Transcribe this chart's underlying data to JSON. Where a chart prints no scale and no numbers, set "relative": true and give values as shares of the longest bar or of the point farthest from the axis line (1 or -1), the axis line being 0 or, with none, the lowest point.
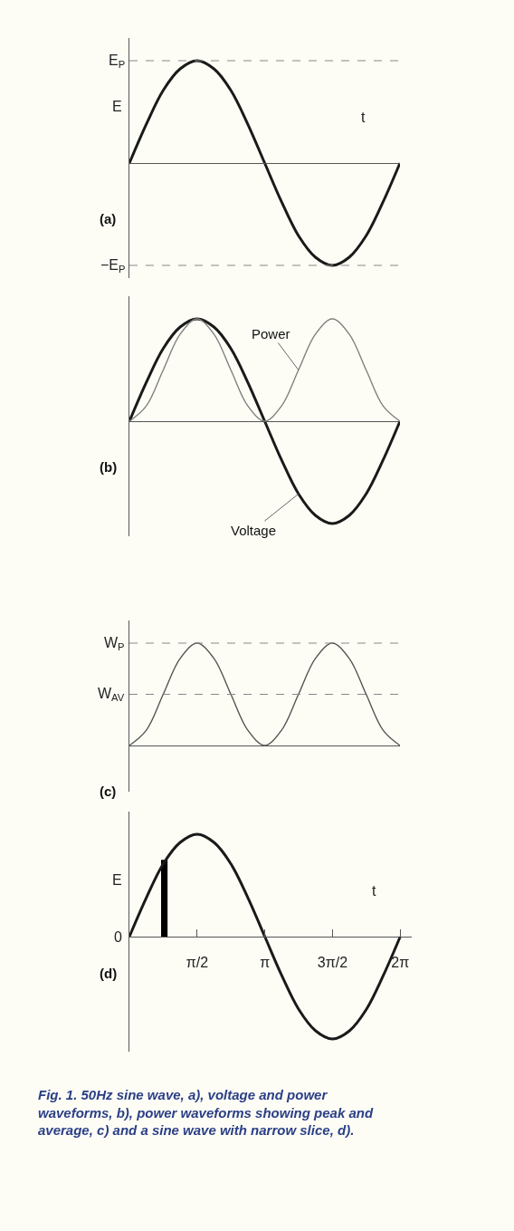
{
  "chart_data": [
    {
      "type": "line",
      "title": "(a)",
      "xlabel": "t",
      "ylabel": "E",
      "relative": true,
      "grid": false,
      "marker": "none",
      "categories": [
        null,
        null,
        null,
        null,
        null,
        null,
        null,
        null,
        null,
        null,
        null,
        null,
        null,
        null,
        null,
        null,
        null
      ],
      "series": [
        {
          "color": "#1a1a1a",
          "values": [
            0,
            0.38,
            0.71,
            0.92,
            1,
            0.92,
            0.71,
            0.38,
            0,
            -0.38,
            -0.71,
            -0.92,
            -1,
            -0.92,
            -0.71,
            -0.38,
            0
          ]
        }
      ],
      "ref_lines": [
        {
          "axis": "y",
          "value": 1,
          "label": "E$_{P}$",
          "color": "#888888",
          "line_style": "dashed"
        },
        {
          "axis": "y",
          "value": -1,
          "label": "−E$_{P}$",
          "color": "#888888",
          "line_style": "dashed"
        }
      ]
    },
    {
      "type": "line",
      "title": "(b)",
      "relative": true,
      "grid": false,
      "marker": "none",
      "categories": [
        null,
        null,
        null,
        null,
        null,
        null,
        null,
        null,
        null,
        null,
        null,
        null,
        null,
        null,
        null,
        null,
        null
      ],
      "series": [
        {
          "name": "Voltage",
          "color": "#1a1a1a",
          "values": [
            0,
            0.38,
            0.71,
            0.92,
            1,
            0.92,
            0.71,
            0.38,
            0,
            -0.38,
            -0.71,
            -0.92,
            -1,
            -0.92,
            -0.71,
            -0.38,
            0
          ]
        },
        {
          "name": "Power",
          "color": "#808080",
          "values": [
            0,
            0.15,
            0.5,
            0.85,
            1,
            0.85,
            0.5,
            0.15,
            0,
            0.15,
            0.5,
            0.85,
            1,
            0.85,
            0.5,
            0.15,
            0
          ]
        }
      ]
    },
    {
      "type": "line",
      "title": "(c)",
      "relative": true,
      "grid": false,
      "marker": "none",
      "categories": [
        null,
        null,
        null,
        null,
        null,
        null,
        null,
        null,
        null,
        null,
        null,
        null,
        null,
        null,
        null,
        null,
        null
      ],
      "series": [
        {
          "color": "#555555",
          "values": [
            0,
            0.15,
            0.5,
            0.85,
            1,
            0.85,
            0.5,
            0.15,
            0,
            0.15,
            0.5,
            0.85,
            1,
            0.85,
            0.5,
            0.15,
            0
          ]
        }
      ],
      "ref_lines": [
        {
          "axis": "y",
          "value": 1,
          "label": "W$_{P}$",
          "color": "#888888",
          "line_style": "dashed"
        },
        {
          "axis": "y",
          "value": 0.5,
          "label": "W$_{AV}$",
          "color": "#888888",
          "line_style": "dashed"
        }
      ]
    },
    {
      "type": "line",
      "title": "(d)",
      "xlabel": "t",
      "ylabel": "E",
      "relative": true,
      "grid": false,
      "marker": "none",
      "xlim": [
        0,
        6.55
      ],
      "xticks": [
        {
          "value": 1.571,
          "label": "π/2"
        },
        {
          "value": 3.142,
          "label": "π"
        },
        {
          "value": 4.712,
          "label": "3π/2"
        },
        {
          "value": 6.283,
          "label": "2π"
        }
      ],
      "series": [
        {
          "color": "#1a1a1a",
          "x": [
            0,
            0.393,
            0.785,
            1.178,
            1.571,
            1.963,
            2.356,
            2.749,
            3.142,
            3.534,
            3.927,
            4.32,
            4.712,
            5.105,
            5.498,
            5.89,
            6.283
          ],
          "values": [
            0,
            0.38,
            0.71,
            0.92,
            1,
            0.92,
            0.71,
            0.38,
            0,
            -0.38,
            -0.71,
            -0.92,
            -1,
            -0.92,
            -0.71,
            -0.38,
            0
          ]
        },
        {
          "type": "bar",
          "color": "#000000",
          "x": [
            0.81
          ],
          "values": [
            0.75
          ]
        }
      ],
      "annotations": [
        {
          "text": "0",
          "x": 0,
          "y": 0
        },
        "Fig. 1. 50Hz sine wave, a), voltage and power waveforms, b), power waveforms showing peak and average, c) and a sine wave with narrow slice, d)."
      ]
    }
  ]
}
